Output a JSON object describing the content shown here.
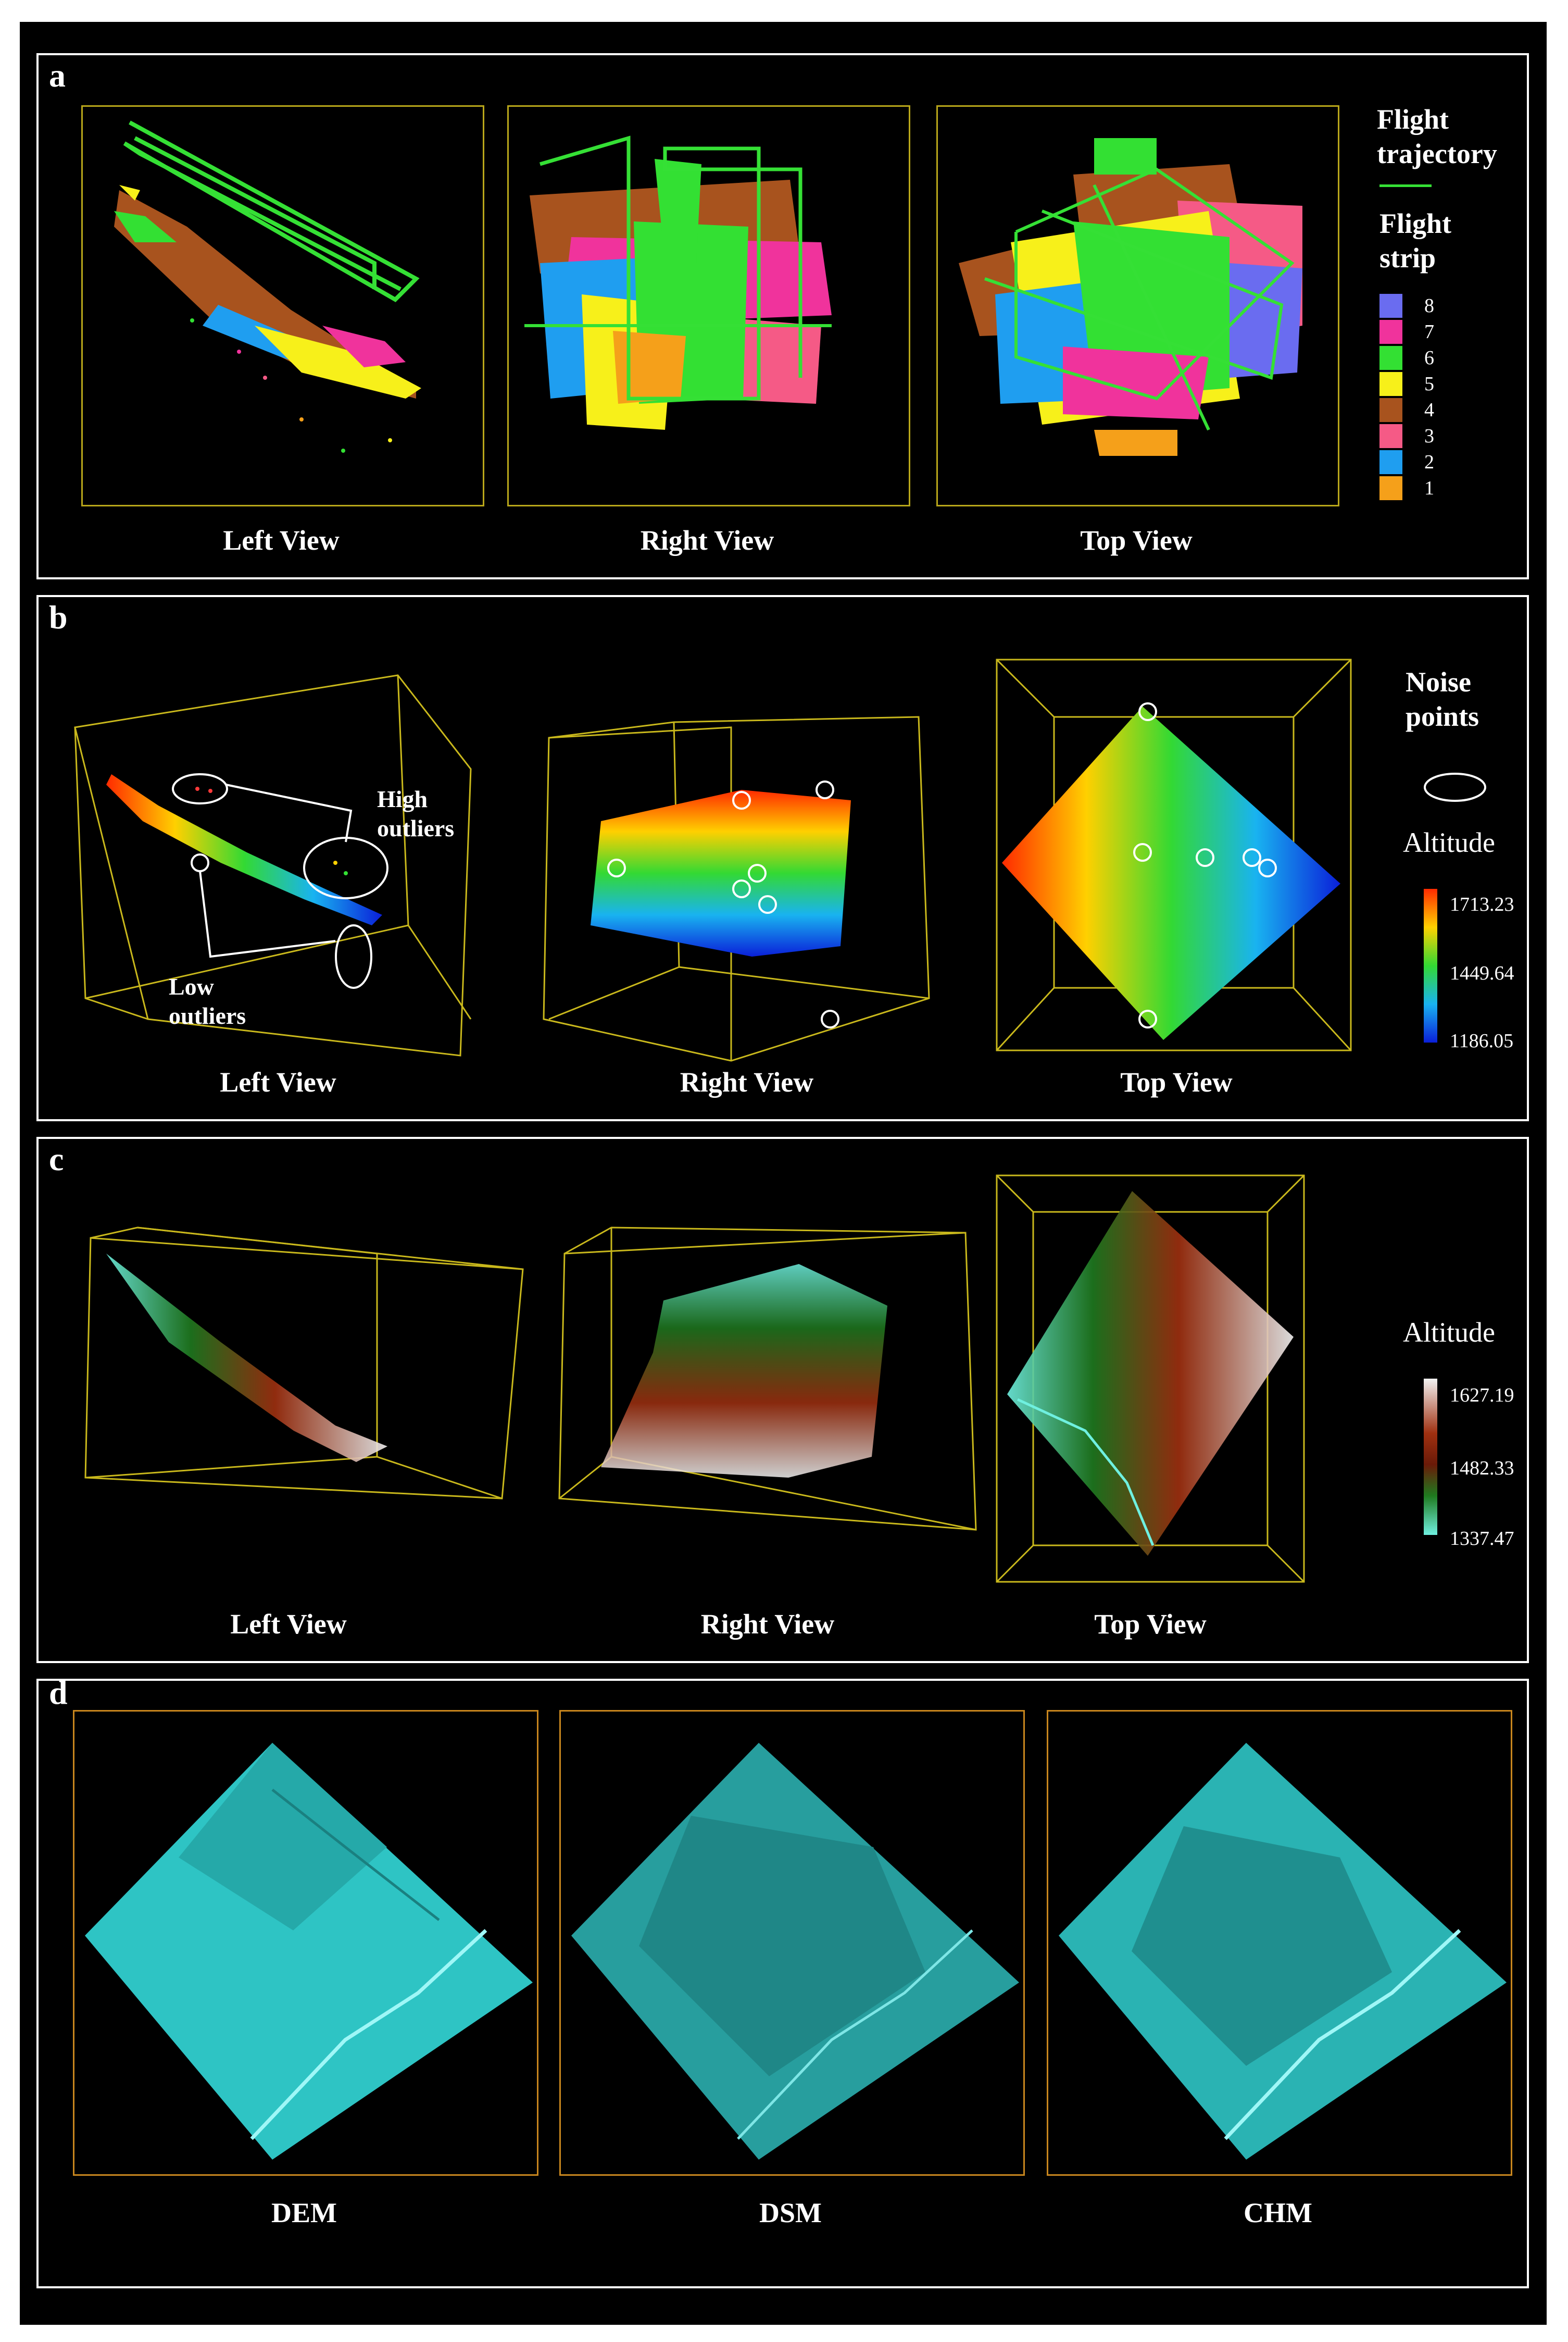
{
  "panel_a": {
    "label": "a",
    "views": [
      "Left View",
      "Right View",
      "Top View"
    ],
    "legend": {
      "trajectory_title": "Flight trajectory",
      "strip_title": "Flight strip",
      "trajectory_color": "#35e035",
      "strips": [
        {
          "label": "8",
          "color": "#6a6cf0"
        },
        {
          "label": "7",
          "color": "#f0339c"
        },
        {
          "label": "6",
          "color": "#33e033"
        },
        {
          "label": "5",
          "color": "#f7f01a"
        },
        {
          "label": "4",
          "color": "#a8531e"
        },
        {
          "label": "3",
          "color": "#f55a86"
        },
        {
          "label": "2",
          "color": "#1f9ef0"
        },
        {
          "label": "1",
          "color": "#f5a01a"
        }
      ]
    }
  },
  "panel_b": {
    "label": "b",
    "views": [
      "Left View",
      "Right View",
      "Top View"
    ],
    "high_outliers": "High outliers",
    "low_outliers": "Low outliers",
    "noise_title": "Noise points",
    "altitude_title": "Altitude",
    "altitude_ticks": [
      "1713.23",
      "1449.64",
      "1186.05"
    ],
    "colormap": [
      "#ff2a00",
      "#ffd000",
      "#33d933",
      "#19b3f0",
      "#0a1fd9"
    ]
  },
  "panel_c": {
    "label": "c",
    "views": [
      "Left View",
      "Right View",
      "Top View"
    ],
    "altitude_title": "Altitude",
    "altitude_ticks": [
      "1627.19",
      "1482.33",
      "1337.47"
    ],
    "colormap": [
      "#f2f2f2",
      "#a03010",
      "#6a1a08",
      "#1f7a1f",
      "#6ff0e0"
    ]
  },
  "panel_d": {
    "label": "d",
    "captions": [
      "DEM",
      "DSM",
      "CHM"
    ],
    "surface_color": "#2ec4c4"
  }
}
